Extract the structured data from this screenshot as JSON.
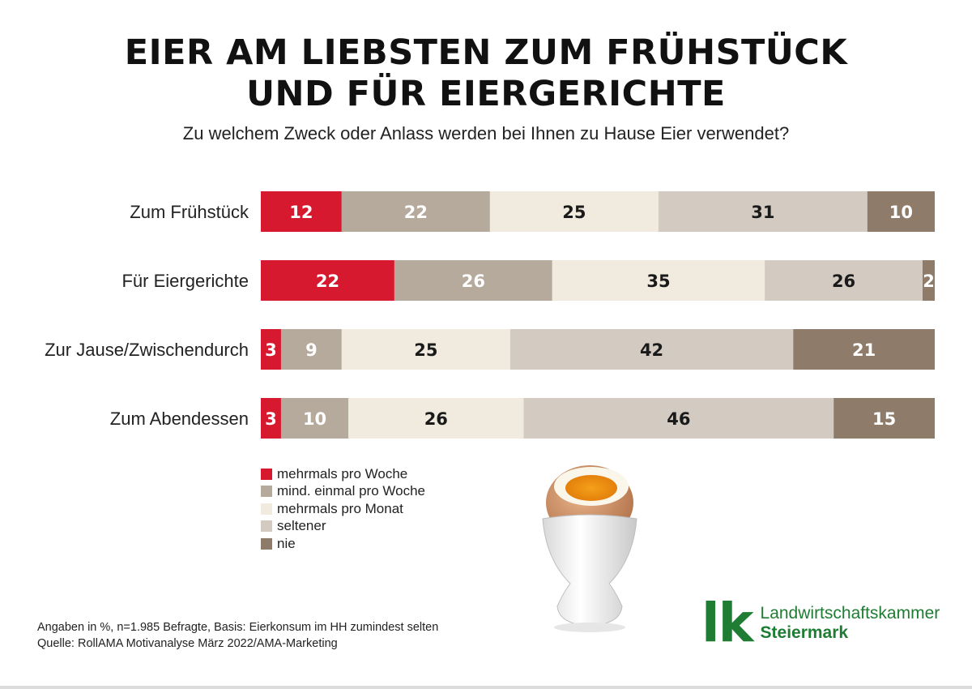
{
  "title_lines": [
    "EIER AM LIEBSTEN ZUM FRÜHSTÜCK",
    "UND FÜR EIERGERICHTE"
  ],
  "subtitle": "Zu welchem Zweck oder Anlass werden bei Ihnen zu Hause Eier verwendet?",
  "chart_data": {
    "type": "bar",
    "orientation": "horizontal",
    "stacked": true,
    "unit": "%",
    "categories": [
      "Zum Frühstück",
      "Für Eiergerichte",
      "Zur Jause/Zwischendurch",
      "Zum Abendessen"
    ],
    "series": [
      {
        "name": "mehrmals pro Woche",
        "color": "#d6192f",
        "label_color": "#ffffff",
        "values": [
          12,
          22,
          3,
          3
        ]
      },
      {
        "name": "mind. einmal pro Woche",
        "color": "#b5aa9c",
        "label_color": "#ffffff",
        "values": [
          22,
          26,
          9,
          10
        ]
      },
      {
        "name": "mehrmals pro Monat",
        "color": "#f0ebde",
        "label_color": "#1a1a1a",
        "values": [
          25,
          35,
          25,
          26
        ]
      },
      {
        "name": "seltener",
        "color": "#d3cac1",
        "label_color": "#1a1a1a",
        "values": [
          31,
          26,
          42,
          46
        ]
      },
      {
        "name": "nie",
        "color": "#8e7b69",
        "label_color": "#ffffff",
        "values": [
          10,
          2,
          21,
          15
        ]
      }
    ],
    "legend_position": "bottom-left",
    "grid": false
  },
  "notes": [
    "Angaben in %, n=1.985 Befragte, Basis: Eierkonsum im HH zumindest selten",
    "Quelle: RollAMA Motivanalyse März 2022/AMA-Marketing"
  ],
  "logo": {
    "mark": "lk",
    "line1": "Landwirtschaftskammer",
    "line2": "Steiermark",
    "color": "#1e7d32"
  }
}
